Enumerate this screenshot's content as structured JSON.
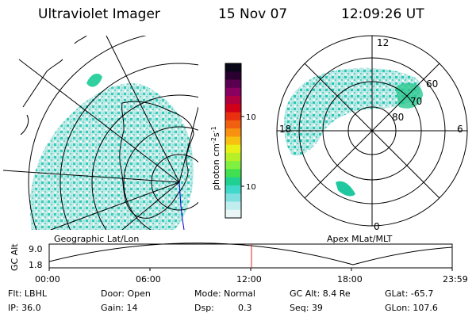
{
  "header": {
    "instrument": "Ultraviolet Imager",
    "date": "15 Nov 07",
    "time": "12:09:26 UT"
  },
  "left_panel": {
    "caption": "Geographic Lat/Lon"
  },
  "right_panel": {
    "caption": "Apex MLat/MLT",
    "mlt_labels": {
      "top": "12",
      "left": "18",
      "right": "6",
      "bottom": "0"
    },
    "lat_labels": [
      "60",
      "70",
      "80"
    ]
  },
  "colorbar": {
    "unit_label": "photon cm",
    "unit_exp1": "-2",
    "unit_mid": "s",
    "unit_exp2": "-1",
    "ticks": [
      "100",
      "10"
    ],
    "colors": [
      "#080818",
      "#2a0030",
      "#5a0050",
      "#8a0060",
      "#b00040",
      "#d00018",
      "#e83010",
      "#f06010",
      "#f89010",
      "#f8c010",
      "#e8f018",
      "#b8f028",
      "#80f040",
      "#40e050",
      "#20d090",
      "#40d8c8",
      "#80e0e0",
      "#c0eeee",
      "#e8f6f6"
    ]
  },
  "timeline": {
    "axis_label": "GC Alt",
    "y_ticks": [
      "9.0",
      "1.8"
    ],
    "x_ticks": [
      "00:00",
      "06:00",
      "12:00",
      "18:00",
      "23:59"
    ],
    "marker_color": "#e02020"
  },
  "info": {
    "filter": "Flt: LBHL",
    "ip": "IP: 36.0",
    "door": "Door: Open",
    "gain": "Gain: 14",
    "mode": "Mode: Normal",
    "dsp_label": "Dsp:",
    "dsp_value": "0.3",
    "gc_alt": "GC Alt: 8.4 Re",
    "seq": "Seq: 39",
    "glat": "GLat: -65.7",
    "glon": "GLon: 107.6"
  }
}
